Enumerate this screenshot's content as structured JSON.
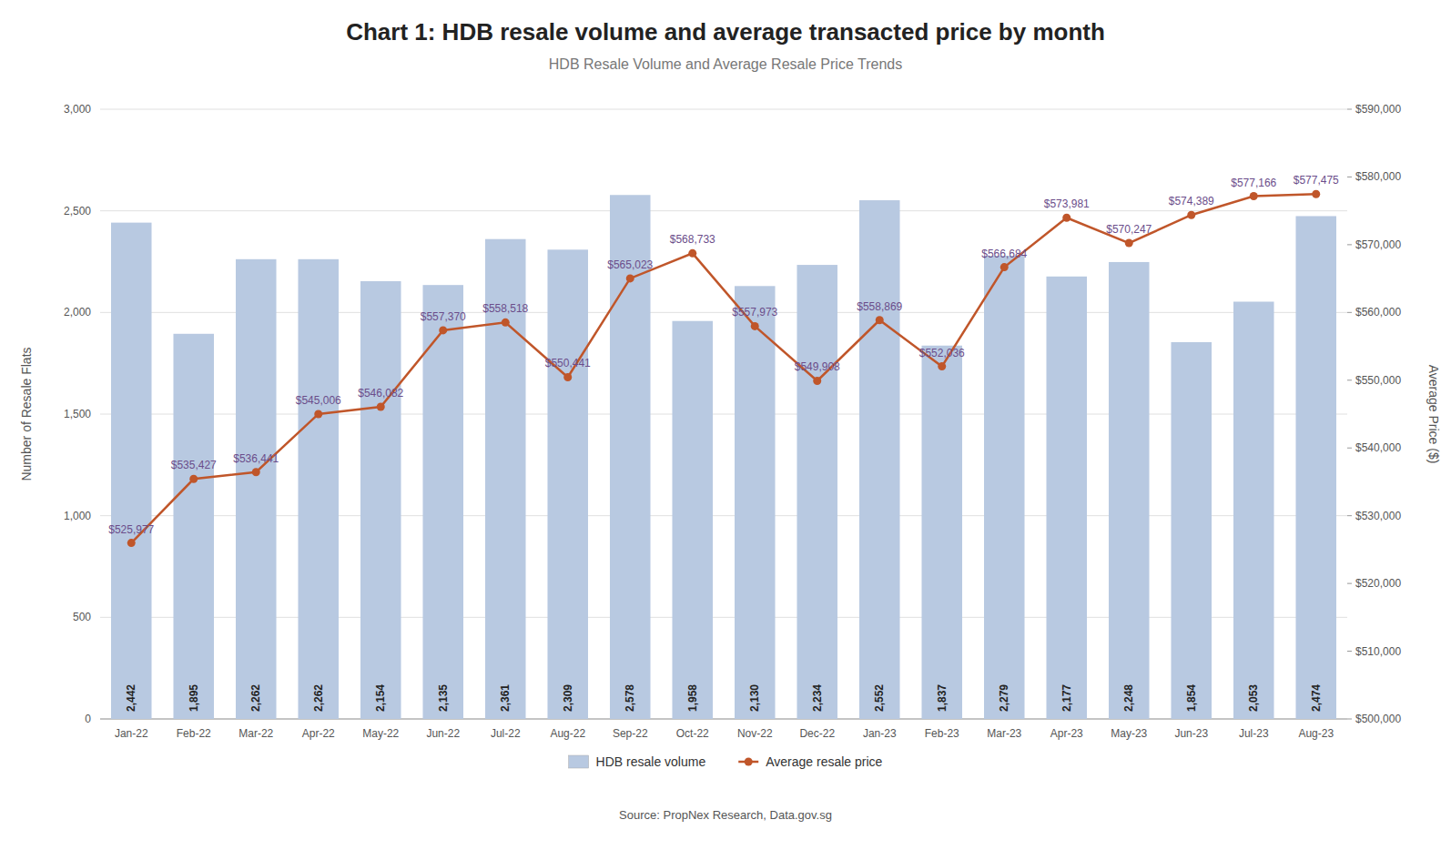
{
  "chart_data": {
    "type": "bar",
    "title": "Chart 1: HDB resale volume and average transacted price by month",
    "subtitle": "HDB Resale Volume and Average Resale Price Trends",
    "source": "Source: PropNex Research, Data.gov.sg",
    "ylabel": "Number of Resale Flats",
    "y2label": "Average Price ($)",
    "categories": [
      "Jan-22",
      "Feb-22",
      "Mar-22",
      "Apr-22",
      "May-22",
      "Jun-22",
      "Jul-22",
      "Aug-22",
      "Sep-22",
      "Oct-22",
      "Nov-22",
      "Dec-22",
      "Jan-23",
      "Feb-23",
      "Mar-23",
      "Apr-23",
      "May-23",
      "Jun-23",
      "Jul-23",
      "Aug-23"
    ],
    "series": [
      {
        "name": "HDB resale volume",
        "type": "bar",
        "color": "#b8c9e1",
        "data_labels": true,
        "values": [
          2442,
          1895,
          2262,
          2262,
          2154,
          2135,
          2361,
          2309,
          2578,
          1958,
          2130,
          2234,
          2552,
          1837,
          2279,
          2177,
          2248,
          1854,
          2053,
          2474
        ],
        "value_labels": [
          "2,442",
          "1,895",
          "2,262",
          "2,262",
          "2,154",
          "2,135",
          "2,361",
          "2,309",
          "2,578",
          "1,958",
          "2,130",
          "2,234",
          "2,552",
          "1,837",
          "2,279",
          "2,177",
          "2,248",
          "1,854",
          "2,053",
          "2,474"
        ]
      },
      {
        "name": "Average resale price",
        "type": "line",
        "axis": "y2",
        "color": "#c0562a",
        "marker": "circle",
        "line_style": "solid",
        "data_labels": true,
        "values": [
          525977,
          535427,
          536441,
          545006,
          546082,
          557370,
          558518,
          550441,
          565023,
          568733,
          557973,
          549908,
          558869,
          552036,
          566684,
          573981,
          570247,
          574389,
          577166,
          577475
        ],
        "value_labels": [
          "$525,977",
          "$535,427",
          "$536,441",
          "$545,006",
          "$546,082",
          "$557,370",
          "$558,518",
          "$550,441",
          "$565,023",
          "$568,733",
          "$557,973",
          "$549,908",
          "$558,869",
          "$552,036",
          "$566,684",
          "$573,981",
          "$570,247",
          "$574,389",
          "$577,166",
          "$577,475"
        ]
      }
    ],
    "ylim": [
      0,
      3000
    ],
    "yticks": [
      0,
      500,
      {
        "value": 1000,
        "label": "1,000"
      },
      {
        "value": 1500,
        "label": "1,500"
      },
      {
        "value": 2000,
        "label": "2,000"
      },
      {
        "value": 2500,
        "label": "2,500"
      },
      {
        "value": 3000,
        "label": "3,000"
      }
    ],
    "y2lim": [
      500000,
      590000
    ],
    "y2ticks": [
      {
        "value": 500000,
        "label": "$500,000"
      },
      {
        "value": 510000,
        "label": "$510,000"
      },
      {
        "value": 520000,
        "label": "$520,000"
      },
      {
        "value": 530000,
        "label": "$530,000"
      },
      {
        "value": 540000,
        "label": "$540,000"
      },
      {
        "value": 550000,
        "label": "$550,000"
      },
      {
        "value": 560000,
        "label": "$560,000"
      },
      {
        "value": 570000,
        "label": "$570,000"
      },
      {
        "value": 580000,
        "label": "$580,000"
      },
      {
        "value": 590000,
        "label": "$590,000"
      }
    ],
    "grid": true,
    "legend": "bottom"
  }
}
